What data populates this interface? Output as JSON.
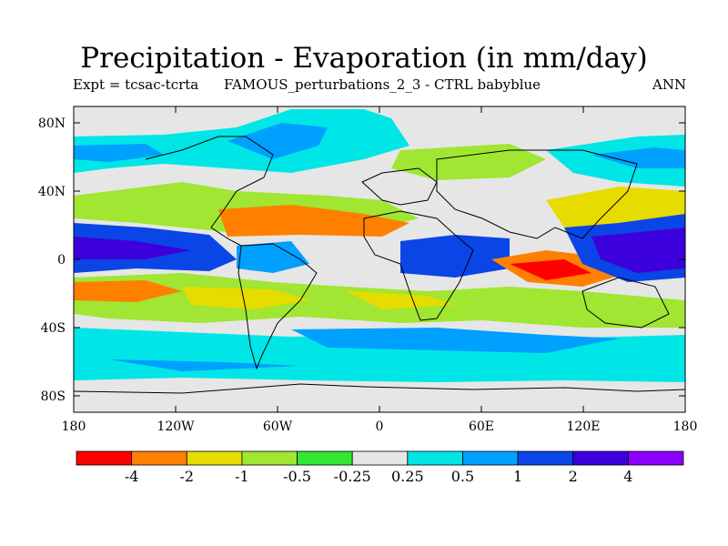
{
  "title": "Precipitation - Evaporation (in mm/day)",
  "subtitle_left": "Expt = tcsac-tcrta",
  "subtitle_middle": "FAMOUS_perturbations_2_3 - CTRL babyblue",
  "subtitle_right": "ANN",
  "lat_labels": [
    "80N",
    "40N",
    "0",
    "40S",
    "80S"
  ],
  "lon_labels": [
    "180",
    "120W",
    "60W",
    "0",
    "60E",
    "120E",
    "180"
  ],
  "colorbar": {
    "colors": [
      "#ff0000",
      "#ff8000",
      "#e6dc00",
      "#a0e632",
      "#32e632",
      "#e6e6e6",
      "#00e6e6",
      "#00a0ff",
      "#0a46e6",
      "#3c00dc",
      "#8c00ff"
    ],
    "labels": [
      "-4",
      "-2",
      "-1",
      "-0.5",
      "-0.25",
      "0.25",
      "0.5",
      "1",
      "2",
      "4"
    ]
  },
  "colors": {
    "land_outline": "#000000",
    "background": "#e6e6e6"
  }
}
